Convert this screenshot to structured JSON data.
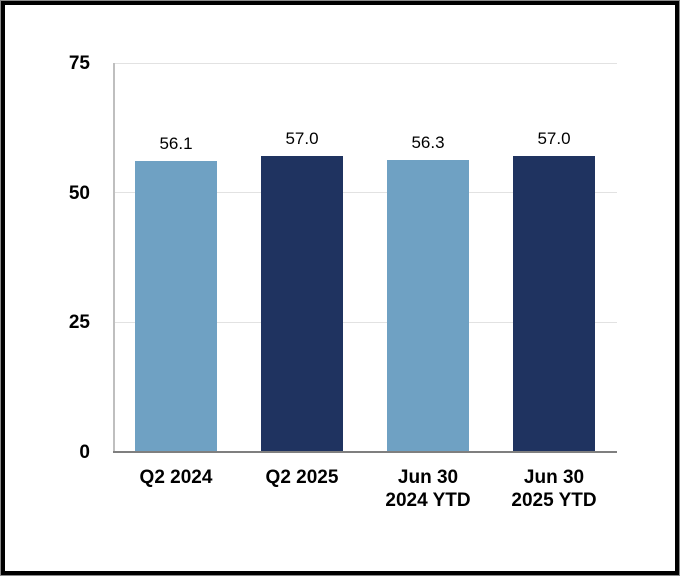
{
  "chart_data": {
    "type": "bar",
    "title": "",
    "xlabel": "",
    "ylabel": "",
    "categories": [
      "Q2 2024",
      "Q2 2025",
      "Jun 30\n2024 YTD",
      "Jun 30\n2025 YTD"
    ],
    "values": [
      56.1,
      57.0,
      56.3,
      57.0
    ],
    "value_labels": [
      "56.1",
      "57.0",
      "56.3",
      "57.0"
    ],
    "bar_colors": [
      "#6FA1C3",
      "#1F3360",
      "#6FA1C3",
      "#1F3360"
    ],
    "ylim": [
      0,
      75
    ],
    "yticks": [
      0,
      25,
      50,
      75
    ],
    "ytick_labels": [
      "0",
      "25",
      "50",
      "75"
    ],
    "grid": true,
    "legend": "none"
  },
  "colors": {
    "bar_light_blue": "#6FA1C3",
    "bar_dark_navy": "#1F3360",
    "gridline": "#E2E2E2",
    "y_axis_line": "#BFBFBF",
    "x_axis_line": "#7F7F7F",
    "text": "#000000",
    "background": "#FFFFFF",
    "frame_border": "#000000"
  }
}
